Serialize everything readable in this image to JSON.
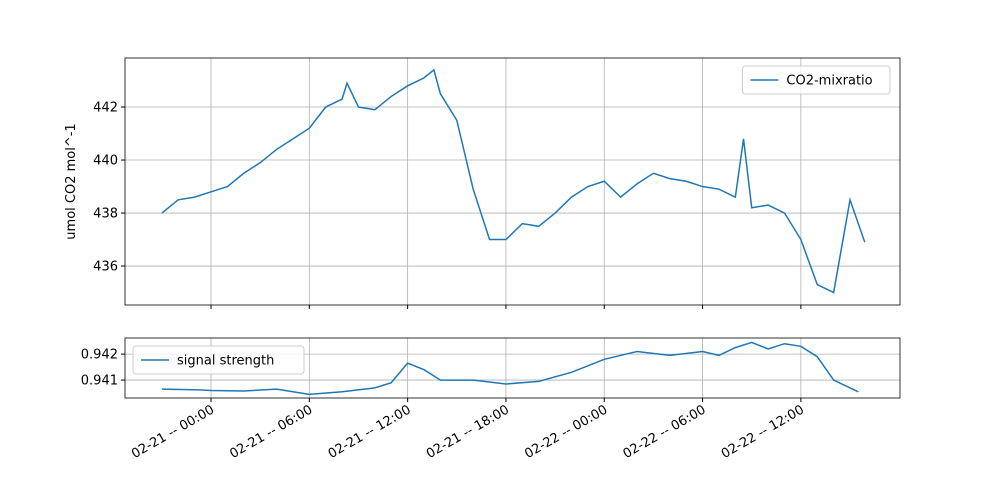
{
  "chart_data": [
    {
      "type": "line",
      "ylabel": "umol CO2 mol^-1",
      "legend": "upper right",
      "grid": true,
      "xlim": [
        "02-20 -- 18:45",
        "02-22 -- 18:03"
      ],
      "xticks": [
        "02-21 -- 00:00",
        "02-21 -- 06:00",
        "02-21 -- 12:00",
        "02-21 -- 18:00",
        "02-22 -- 00:00",
        "02-22 -- 06:00",
        "02-22 -- 12:00"
      ],
      "ylim": [
        434.53,
        443.85
      ],
      "yticks": [
        436,
        438,
        440,
        442
      ],
      "x": [
        "02-20 -- 21:00",
        "02-20 -- 22:00",
        "02-20 -- 23:00",
        "02-21 -- 00:00",
        "02-21 -- 01:00",
        "02-21 -- 02:00",
        "02-21 -- 03:00",
        "02-21 -- 04:00",
        "02-21 -- 05:00",
        "02-21 -- 06:00",
        "02-21 -- 07:00",
        "02-21 -- 08:00",
        "02-21 -- 08:18",
        "02-21 -- 09:00",
        "02-21 -- 10:00",
        "02-21 -- 11:00",
        "02-21 -- 12:00",
        "02-21 -- 13:00",
        "02-21 -- 13:36",
        "02-21 -- 14:00",
        "02-21 -- 15:00",
        "02-21 -- 16:00",
        "02-21 -- 17:00",
        "02-21 -- 18:00",
        "02-21 -- 19:00",
        "02-21 -- 20:00",
        "02-21 -- 21:00",
        "02-21 -- 22:00",
        "02-21 -- 23:00",
        "02-22 -- 00:00",
        "02-22 -- 01:00",
        "02-22 -- 02:00",
        "02-22 -- 03:00",
        "02-22 -- 04:00",
        "02-22 -- 05:00",
        "02-22 -- 06:00",
        "02-22 -- 07:00",
        "02-22 -- 08:00",
        "02-22 -- 08:30",
        "02-22 -- 09:00",
        "02-22 -- 10:00",
        "02-22 -- 11:00",
        "02-22 -- 12:00",
        "02-22 -- 13:00",
        "02-22 -- 14:00",
        "02-22 -- 15:00",
        "02-22 -- 15:54"
      ],
      "series": [
        {
          "name": "CO2-mixratio",
          "color": "#1f77b4",
          "values": [
            438.0,
            438.5,
            438.6,
            438.8,
            439.0,
            439.5,
            439.9,
            440.4,
            440.8,
            441.2,
            442.0,
            442.3,
            442.9,
            442.0,
            441.9,
            442.4,
            442.8,
            443.1,
            443.4,
            442.5,
            441.5,
            438.9,
            437.0,
            437.0,
            437.6,
            437.5,
            438.0,
            438.6,
            439.0,
            439.2,
            438.6,
            439.1,
            439.5,
            439.3,
            439.2,
            439.0,
            438.9,
            438.6,
            440.8,
            438.2,
            438.3,
            438.0,
            437.0,
            435.3,
            435.0,
            438.5,
            436.9
          ]
        }
      ]
    },
    {
      "type": "line",
      "legend": "upper left",
      "grid": true,
      "xlim": [
        "02-20 -- 18:45",
        "02-22 -- 18:03"
      ],
      "xticks": [
        "02-21 -- 00:00",
        "02-21 -- 06:00",
        "02-21 -- 12:00",
        "02-21 -- 18:00",
        "02-22 -- 00:00",
        "02-22 -- 06:00",
        "02-22 -- 12:00"
      ],
      "ylim": [
        0.94031,
        0.94262
      ],
      "yticks": [
        0.941,
        0.942
      ],
      "x": [
        "02-20 -- 21:00",
        "02-20 -- 23:00",
        "02-21 -- 00:00",
        "02-21 -- 02:00",
        "02-21 -- 04:00",
        "02-21 -- 06:00",
        "02-21 -- 08:00",
        "02-21 -- 10:00",
        "02-21 -- 11:00",
        "02-21 -- 12:00",
        "02-21 -- 13:00",
        "02-21 -- 14:00",
        "02-21 -- 16:00",
        "02-21 -- 18:00",
        "02-21 -- 20:00",
        "02-21 -- 22:00",
        "02-22 -- 00:00",
        "02-22 -- 02:00",
        "02-22 -- 04:00",
        "02-22 -- 06:00",
        "02-22 -- 07:00",
        "02-22 -- 08:00",
        "02-22 -- 09:00",
        "02-22 -- 10:00",
        "02-22 -- 11:00",
        "02-22 -- 12:00",
        "02-22 -- 13:00",
        "02-22 -- 14:00",
        "02-22 -- 15:30"
      ],
      "series": [
        {
          "name": "signal strength",
          "color": "#1f77b4",
          "values": [
            0.94065,
            0.94063,
            0.9406,
            0.94058,
            0.94065,
            0.94045,
            0.94055,
            0.9407,
            0.9409,
            0.94165,
            0.9414,
            0.941,
            0.941,
            0.94085,
            0.94095,
            0.9413,
            0.9418,
            0.9421,
            0.94195,
            0.9421,
            0.94195,
            0.94225,
            0.94245,
            0.9422,
            0.9424,
            0.9423,
            0.9419,
            0.941,
            0.94055
          ]
        }
      ]
    }
  ]
}
